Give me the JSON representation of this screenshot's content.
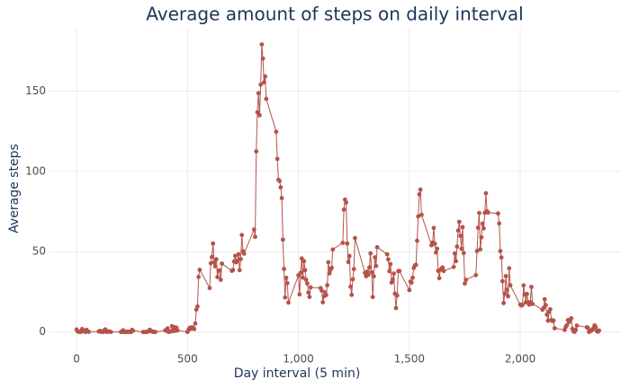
{
  "chart_data": {
    "type": "line",
    "title": "Average amount of steps on daily interval",
    "x_label": "Day interval (5 min)",
    "y_label": "Average steps",
    "color": "#b5534b",
    "grid": true,
    "xlim": [
      -122,
      2454
    ],
    "ylim": [
      -17,
      190
    ],
    "xticks": [
      0,
      500,
      {
        "value": 1000,
        "label": "1,000"
      },
      {
        "value": 1500,
        "label": "1,500"
      },
      {
        "value": 2000,
        "label": "2,000"
      }
    ],
    "yticks": [
      0,
      50,
      100,
      150
    ],
    "x": [
      0,
      5,
      10,
      15,
      20,
      25,
      30,
      35,
      40,
      45,
      50,
      55,
      100,
      105,
      110,
      115,
      120,
      125,
      130,
      135,
      140,
      145,
      150,
      155,
      200,
      205,
      210,
      215,
      220,
      225,
      230,
      235,
      240,
      245,
      250,
      255,
      300,
      305,
      310,
      315,
      320,
      325,
      330,
      335,
      340,
      345,
      350,
      355,
      400,
      405,
      410,
      415,
      420,
      425,
      430,
      435,
      440,
      445,
      450,
      455,
      500,
      505,
      510,
      515,
      520,
      525,
      530,
      535,
      540,
      545,
      550,
      555,
      600,
      605,
      610,
      615,
      620,
      625,
      630,
      635,
      640,
      645,
      650,
      655,
      700,
      705,
      710,
      715,
      720,
      725,
      730,
      735,
      740,
      745,
      750,
      755,
      800,
      805,
      810,
      815,
      820,
      825,
      830,
      835,
      840,
      845,
      850,
      855,
      900,
      905,
      910,
      915,
      920,
      925,
      930,
      935,
      940,
      945,
      950,
      955,
      1000,
      1005,
      1010,
      1015,
      1020,
      1025,
      1030,
      1035,
      1040,
      1045,
      1050,
      1055,
      1100,
      1105,
      1110,
      1115,
      1120,
      1125,
      1130,
      1135,
      1140,
      1145,
      1150,
      1155,
      1200,
      1205,
      1210,
      1215,
      1220,
      1225,
      1230,
      1235,
      1240,
      1245,
      1250,
      1255,
      1300,
      1305,
      1310,
      1315,
      1320,
      1325,
      1330,
      1335,
      1340,
      1345,
      1350,
      1355,
      1400,
      1405,
      1410,
      1415,
      1420,
      1425,
      1430,
      1435,
      1440,
      1445,
      1450,
      1455,
      1500,
      1505,
      1510,
      1515,
      1520,
      1525,
      1530,
      1535,
      1540,
      1545,
      1550,
      1555,
      1600,
      1605,
      1610,
      1615,
      1620,
      1625,
      1630,
      1635,
      1640,
      1645,
      1650,
      1655,
      1700,
      1705,
      1710,
      1715,
      1720,
      1725,
      1730,
      1735,
      1740,
      1745,
      1750,
      1755,
      1800,
      1805,
      1810,
      1815,
      1820,
      1825,
      1830,
      1835,
      1840,
      1845,
      1850,
      1855,
      1900,
      1905,
      1910,
      1915,
      1920,
      1925,
      1930,
      1935,
      1940,
      1945,
      1950,
      1955,
      2000,
      2005,
      2010,
      2015,
      2020,
      2025,
      2030,
      2035,
      2040,
      2045,
      2050,
      2055,
      2100,
      2105,
      2110,
      2115,
      2120,
      2125,
      2130,
      2135,
      2140,
      2145,
      2150,
      2155,
      2200,
      2205,
      2210,
      2215,
      2220,
      2225,
      2230,
      2235,
      2240,
      2245,
      2250,
      2255,
      2300,
      2305,
      2310,
      2315,
      2320,
      2325,
      2330,
      2335,
      2340,
      2345,
      2350,
      2355
    ],
    "values": [
      1.5,
      0.3,
      0.1,
      0.1,
      0.1,
      1.8,
      0.5,
      0.8,
      0,
      1.3,
      0.3,
      0.1,
      0.3,
      0.6,
      0.1,
      0.3,
      0,
      1,
      1.6,
      0.1,
      0.1,
      0.3,
      0.2,
      0,
      0,
      0,
      1,
      0,
      0,
      0.1,
      0,
      0.2,
      0,
      0,
      1.3,
      0.8,
      0,
      0,
      0,
      0,
      0.2,
      0.5,
      1.4,
      0.5,
      0.4,
      0.1,
      0,
      0,
      1,
      0.8,
      2.2,
      0,
      0.3,
      0.3,
      3.6,
      0.6,
      3,
      0.7,
      2.7,
      1,
      0,
      1.4,
      2.6,
      2,
      2.9,
      2.6,
      1.8,
      5.3,
      13.9,
      15.9,
      34.3,
      38.7,
      27.4,
      42.8,
      46.7,
      55.1,
      43.4,
      40.9,
      45.3,
      34.2,
      38.2,
      38.4,
      32.5,
      42.6,
      38.1,
      38.6,
      43.9,
      47.4,
      43.4,
      44.3,
      48.4,
      38.5,
      45.4,
      60.4,
      50.3,
      48.8,
      63.8,
      59.3,
      112.5,
      136.9,
      148.7,
      135,
      154.1,
      179.1,
      170.3,
      155.5,
      159.2,
      145.2,
      124.7,
      107.8,
      94.8,
      94,
      90.1,
      83.4,
      57.5,
      39.3,
      21.5,
      33.7,
      30.4,
      18.3,
      35.3,
      23.4,
      36.9,
      45.8,
      33.8,
      44.1,
      38.5,
      32.5,
      30.2,
      24.6,
      21.8,
      27.8,
      27.3,
      25.8,
      18.5,
      22.2,
      24.7,
      23,
      29.1,
      43.4,
      36.5,
      38.8,
      40,
      51.4,
      55.5,
      76.2,
      82.4,
      80.6,
      55.1,
      43.6,
      47.3,
      28.2,
      23.1,
      32.8,
      39.2,
      58.5,
      36.8,
      34.7,
      37.6,
      35.6,
      40.2,
      49,
      37.2,
      21.8,
      34.7,
      46.5,
      41.1,
      52.8,
      48.4,
      45.2,
      37.9,
      42.3,
      30.8,
      32.6,
      36.4,
      23.9,
      14.9,
      22.7,
      37.9,
      38,
      26.1,
      31.4,
      30.8,
      33.8,
      39.9,
      41.5,
      41.8,
      56.8,
      72,
      85.7,
      88.7,
      73,
      54,
      55.7,
      64.8,
      54.9,
      49.5,
      51.9,
      38.1,
      33.5,
      38.8,
      39.5,
      40.2,
      38,
      40.5,
      48.9,
      44.1,
      53.2,
      63.2,
      68.6,
      59.9,
      51.8,
      65.3,
      49.1,
      30.2,
      32.5,
      35.4,
      50.4,
      64.9,
      74.1,
      51.5,
      58.9,
      67.5,
      64.5,
      74.2,
      86.4,
      75.2,
      74.4,
      73.8,
      67.6,
      50.4,
      46.4,
      31.6,
      18,
      23.8,
      34.8,
      26.3,
      22.2,
      39.7,
      29.1,
      17,
      16.5,
      16.8,
      29,
      23.3,
      18.4,
      23.7,
      18.5,
      17,
      18.5,
      28.1,
      17.5,
      13.9,
      15,
      20.4,
      16.7,
      10.8,
      7,
      12.7,
      14.2,
      7.5,
      6.8,
      7.1,
      2.3,
      1.3,
      3.2,
      4.2,
      7.4,
      6.2,
      7.6,
      8.5,
      1.9,
      0.3,
      0.1,
      1.4,
      4,
      2.9,
      2.5,
      0,
      0.7,
      0.8,
      1.4,
      2.3,
      4.1,
      2.9,
      0.6,
      0.2,
      0.9
    ]
  }
}
